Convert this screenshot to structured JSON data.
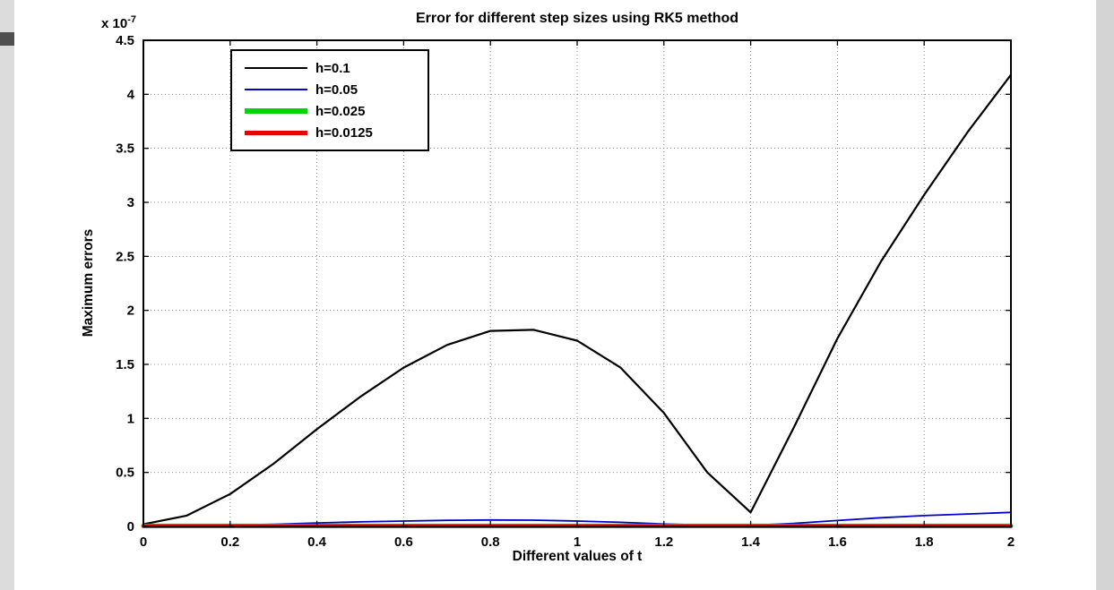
{
  "window": {
    "background": "#ffffff",
    "edge_strip_color": "#dcdcdc",
    "edge_marker_color": "#4f4f4f"
  },
  "axes": {
    "y_offset_base": "x 10",
    "y_offset_exp": "-7",
    "x_tick_labels": [
      "0",
      "0.2",
      "0.4",
      "0.6",
      "0.8",
      "1",
      "1.2",
      "1.4",
      "1.6",
      "1.8",
      "2"
    ],
    "y_tick_labels": [
      "0",
      "0.5",
      "1",
      "1.5",
      "2",
      "2.5",
      "3",
      "3.5",
      "4",
      "4.5"
    ],
    "axis_color": "#000000",
    "grid_color": "#8f8f8f"
  },
  "chart_data": {
    "type": "line",
    "title": "Error for different step sizes using RK5 method",
    "xlabel": "Different values of t",
    "ylabel": "Maximum errors",
    "xlim": [
      0,
      2
    ],
    "ylim": [
      0,
      4.5
    ],
    "y_unit_multiplier": "1e-7",
    "x_ticks": [
      0,
      0.2,
      0.4,
      0.6,
      0.8,
      1,
      1.2,
      1.4,
      1.6,
      1.8,
      2
    ],
    "y_ticks": [
      0,
      0.5,
      1,
      1.5,
      2,
      2.5,
      3,
      3.5,
      4,
      4.5
    ],
    "grid": true,
    "legend_position": "top-left",
    "series": [
      {
        "name": "h=0.1",
        "color": "#000000",
        "line_width": 2.2,
        "legend_sample_width": 2.5,
        "x": [
          0,
          0.1,
          0.2,
          0.3,
          0.4,
          0.5,
          0.6,
          0.7,
          0.8,
          0.9,
          1.0,
          1.1,
          1.2,
          1.3,
          1.4,
          1.5,
          1.6,
          1.7,
          1.8,
          1.9,
          2.0
        ],
        "y": [
          0.02,
          0.1,
          0.3,
          0.58,
          0.9,
          1.2,
          1.47,
          1.68,
          1.81,
          1.82,
          1.72,
          1.47,
          1.05,
          0.5,
          0.13,
          0.92,
          1.74,
          2.45,
          3.07,
          3.65,
          4.18
        ]
      },
      {
        "name": "h=0.05",
        "color": "#0000cc",
        "line_width": 1.8,
        "legend_sample_width": 2,
        "x": [
          0,
          0.1,
          0.2,
          0.3,
          0.4,
          0.5,
          0.6,
          0.7,
          0.8,
          0.9,
          1.0,
          1.1,
          1.2,
          1.3,
          1.4,
          1.5,
          1.6,
          1.7,
          1.8,
          1.9,
          2.0
        ],
        "y": [
          0.0,
          0.005,
          0.012,
          0.02,
          0.032,
          0.042,
          0.05,
          0.056,
          0.06,
          0.058,
          0.05,
          0.038,
          0.022,
          0.012,
          0.01,
          0.028,
          0.055,
          0.08,
          0.1,
          0.115,
          0.13
        ]
      },
      {
        "name": "h=0.025",
        "color": "#00d500",
        "line_width": 5,
        "legend_sample_width": 6,
        "x": [
          0,
          2
        ],
        "y": [
          0.005,
          0.005
        ]
      },
      {
        "name": "h=0.0125",
        "color": "#e60000",
        "line_width": 4,
        "legend_sample_width": 5,
        "x": [
          0,
          2
        ],
        "y": [
          0.002,
          0.002
        ]
      }
    ]
  }
}
